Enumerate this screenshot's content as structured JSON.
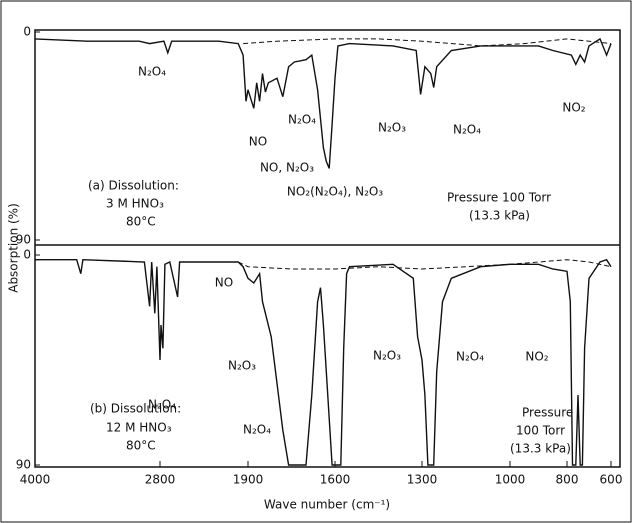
{
  "chart_data": [
    {
      "type": "line",
      "y_label": "Absorption (%)",
      "ylim": [
        0,
        90
      ],
      "yticks": [
        0,
        90
      ],
      "annotations": [
        "N₂O₄",
        "NO",
        "NO, N₂O₃",
        "N₂O₄",
        "NO₂(N₂O₄), N₂O₃",
        "N₂O₃",
        "N₂O₄",
        "NO₂",
        "(a) Dissolution:",
        "3 M HNO₃",
        "80°C",
        "Pressure 100 Torr",
        "(13.3 kPa)"
      ],
      "series": [
        {
          "color": "#111111",
          "style": "solid",
          "x": [
            4000,
            3500,
            3000,
            2900,
            2760,
            2720,
            2680,
            2200,
            2000,
            1950,
            1920,
            1900,
            1880,
            1870,
            1860,
            1850,
            1840,
            1830,
            1800,
            1780,
            1760,
            1740,
            1700,
            1680,
            1660,
            1640,
            1630,
            1620,
            1610,
            1600,
            1590,
            1550,
            1400,
            1320,
            1305,
            1290,
            1270,
            1260,
            1250,
            1200,
            1100,
            900,
            850,
            780,
            760,
            740,
            720,
            700,
            650,
            620,
            600
          ],
          "values": [
            3,
            4,
            4,
            5,
            4,
            9,
            4,
            4,
            5,
            10,
            30,
            25,
            33,
            22,
            30,
            18,
            26,
            22,
            20,
            28,
            15,
            13,
            12,
            10,
            25,
            50,
            56,
            59,
            40,
            20,
            6,
            5,
            6,
            8,
            27,
            15,
            18,
            24,
            15,
            8,
            6,
            6,
            8,
            10,
            14,
            10,
            13,
            6,
            3,
            10,
            5
          ]
        },
        {
          "color": "#111111",
          "style": "dashed",
          "x": [
            1950,
            1800,
            1600,
            1450,
            1300,
            1100,
            950,
            800,
            700,
            600
          ],
          "values": [
            5,
            4,
            3,
            3,
            4,
            6,
            5,
            3,
            4,
            5
          ]
        }
      ]
    },
    {
      "type": "line",
      "x_label": "Wave number (cm⁻¹)",
      "xlim": [
        4000,
        600
      ],
      "ylim": [
        0,
        90
      ],
      "yticks": [
        0,
        90
      ],
      "xticks": [
        4000,
        2800,
        1900,
        1600,
        1300,
        1000,
        800,
        600
      ],
      "annotations": [
        "NO",
        "N₂O₄",
        "N₂O₃",
        "N₂O₄",
        "N₂O₃",
        "N₂O₄",
        "NO₂",
        "(b) Dissolution:",
        "12 M HNO₃",
        "80°C",
        "Pressure",
        "100 Torr",
        "(13.3 kPa)"
      ],
      "series": [
        {
          "color": "#111111",
          "style": "solid",
          "x": [
            4000,
            3600,
            3560,
            3540,
            2950,
            2900,
            2880,
            2850,
            2830,
            2800,
            2790,
            2770,
            2750,
            2700,
            2620,
            2600,
            2000,
            1950,
            1900,
            1880,
            1860,
            1850,
            1820,
            1800,
            1780,
            1760,
            1700,
            1680,
            1660,
            1650,
            1640,
            1620,
            1610,
            1580,
            1570,
            1560,
            1550,
            1400,
            1330,
            1315,
            1300,
            1290,
            1280,
            1260,
            1250,
            1230,
            1200,
            1100,
            1000,
            900,
            850,
            800,
            785,
            775,
            760,
            750,
            740,
            730,
            720,
            700,
            650,
            620,
            600
          ],
          "values": [
            2,
            2,
            8,
            2,
            3,
            22,
            3,
            25,
            5,
            45,
            30,
            40,
            4,
            3,
            18,
            3,
            3,
            5,
            10,
            12,
            8,
            20,
            35,
            55,
            75,
            90,
            90,
            60,
            20,
            14,
            30,
            70,
            90,
            90,
            40,
            8,
            5,
            4,
            10,
            35,
            45,
            60,
            90,
            90,
            50,
            20,
            10,
            5,
            4,
            4,
            6,
            7,
            20,
            90,
            90,
            60,
            90,
            90,
            40,
            10,
            3,
            2,
            5
          ]
        },
        {
          "color": "#111111",
          "style": "dashed",
          "x": [
            2000,
            1900,
            1750,
            1600,
            1450,
            1300,
            1150,
            1000,
            900,
            800,
            700,
            600
          ],
          "values": [
            3,
            5,
            6,
            6,
            5,
            6,
            5,
            4,
            3,
            2,
            3,
            5
          ]
        }
      ]
    }
  ]
}
